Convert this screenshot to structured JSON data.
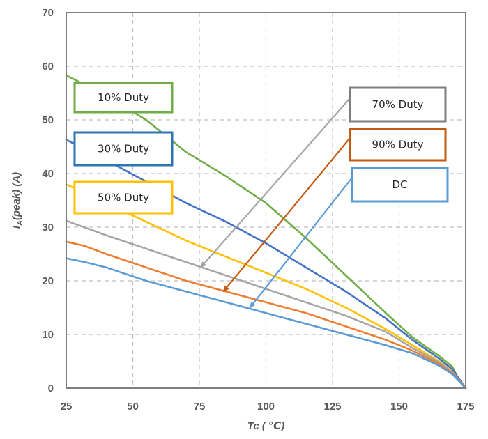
{
  "chart_data": {
    "type": "line",
    "xlabel_parts": [
      "Tc ( ",
      "℃",
      ")"
    ],
    "ylabel_parts": [
      "I",
      "A",
      "(peak) (A)"
    ],
    "xlim": [
      25,
      175
    ],
    "ylim": [
      0,
      70
    ],
    "xticks": [
      25,
      50,
      75,
      100,
      125,
      150,
      175
    ],
    "yticks": [
      0,
      10,
      20,
      30,
      40,
      50,
      60,
      70
    ],
    "grid": true,
    "grid_style": "dashed",
    "series": [
      {
        "name": "10% Duty",
        "color": "#70AD47",
        "x": [
          25,
          40,
          55,
          70,
          85,
          100,
          115,
          130,
          145,
          155,
          165,
          170,
          172,
          175
        ],
        "y": [
          58.3,
          54.5,
          50.0,
          44.0,
          39.5,
          34.5,
          28.0,
          21.0,
          14.0,
          9.5,
          6.0,
          4.0,
          2.0,
          0
        ]
      },
      {
        "name": "30% Duty",
        "color": "#4472C4",
        "x": [
          25,
          40,
          55,
          70,
          85,
          100,
          115,
          130,
          145,
          155,
          165,
          170,
          175
        ],
        "y": [
          46.3,
          42.5,
          38.5,
          34.5,
          31.0,
          27.0,
          22.5,
          18.0,
          13.0,
          9.0,
          5.5,
          3.5,
          0
        ]
      },
      {
        "name": "50% Duty",
        "color": "#FFC000",
        "x": [
          25,
          40,
          55,
          70,
          85,
          100,
          115,
          130,
          145,
          155,
          165,
          170,
          175
        ],
        "y": [
          38.0,
          34.5,
          31.0,
          27.5,
          24.5,
          21.5,
          18.5,
          15.0,
          11.0,
          8.0,
          5.0,
          3.0,
          0
        ]
      },
      {
        "name": "70% Duty",
        "color": "#A5A5A5",
        "x": [
          25,
          40,
          55,
          70,
          85,
          100,
          115,
          130,
          145,
          155,
          165,
          170,
          175
        ],
        "y": [
          31.2,
          28.5,
          26.0,
          23.5,
          21.0,
          18.5,
          16.0,
          13.5,
          10.5,
          7.5,
          4.8,
          3.0,
          0
        ]
      },
      {
        "name": "90% Duty",
        "color": "#ED7D31",
        "x": [
          25,
          32,
          40,
          55,
          70,
          85,
          100,
          115,
          130,
          145,
          155,
          165,
          170,
          175
        ],
        "y": [
          27.3,
          26.5,
          25.0,
          22.5,
          20.0,
          18.0,
          16.0,
          14.0,
          11.5,
          9.0,
          7.0,
          4.5,
          2.8,
          0
        ]
      },
      {
        "name": "DC",
        "color": "#5B9BD5",
        "x": [
          25,
          32,
          40,
          55,
          70,
          85,
          100,
          115,
          130,
          145,
          155,
          165,
          170,
          175
        ],
        "y": [
          24.2,
          23.5,
          22.5,
          20.0,
          18.0,
          16.0,
          14.0,
          12.0,
          10.0,
          8.0,
          6.5,
          4.2,
          2.6,
          0
        ]
      }
    ],
    "annotations": [
      {
        "text": "10% Duty",
        "border": "#70AD47"
      },
      {
        "text": "30% Duty",
        "border": "#2E75B6"
      },
      {
        "text": "50% Duty",
        "border": "#FFC000"
      },
      {
        "text": "70% Duty",
        "border": "#7F7F7F",
        "arrow_color": "#A5A5A5",
        "arrow_to": [
          75.5,
          22.5
        ]
      },
      {
        "text": "90% Duty",
        "border": "#C55A11",
        "arrow_color": "#C55A11",
        "arrow_to": [
          84,
          18
        ]
      },
      {
        "text": "DC",
        "border": "#5B9BD5",
        "arrow_color": "#5B9BD5",
        "arrow_to": [
          94,
          15
        ]
      }
    ]
  }
}
